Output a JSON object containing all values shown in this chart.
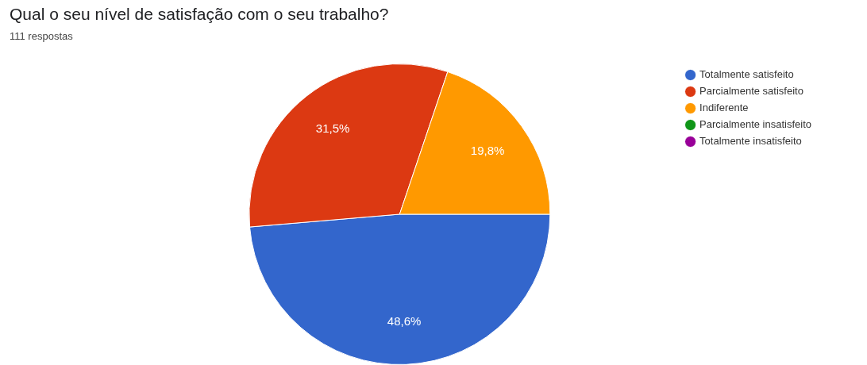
{
  "chart_data": {
    "type": "pie",
    "title": "Qual o seu nível de satisfação com o seu trabalho?",
    "subtitle": "111 respostas",
    "categories": [
      "Totalmente satisfeito",
      "Parcialmente satisfeito",
      "Indiferente",
      "Parcialmente insatisfeito",
      "Totalmente insatisfeito"
    ],
    "values": [
      48.6,
      31.5,
      19.8,
      0,
      0
    ],
    "colors": [
      "#3366cc",
      "#dc3912",
      "#ff9900",
      "#109618",
      "#990099"
    ],
    "value_labels": [
      "48,6%",
      "31,5%",
      "19,8%",
      null,
      null
    ],
    "legend": "right"
  }
}
